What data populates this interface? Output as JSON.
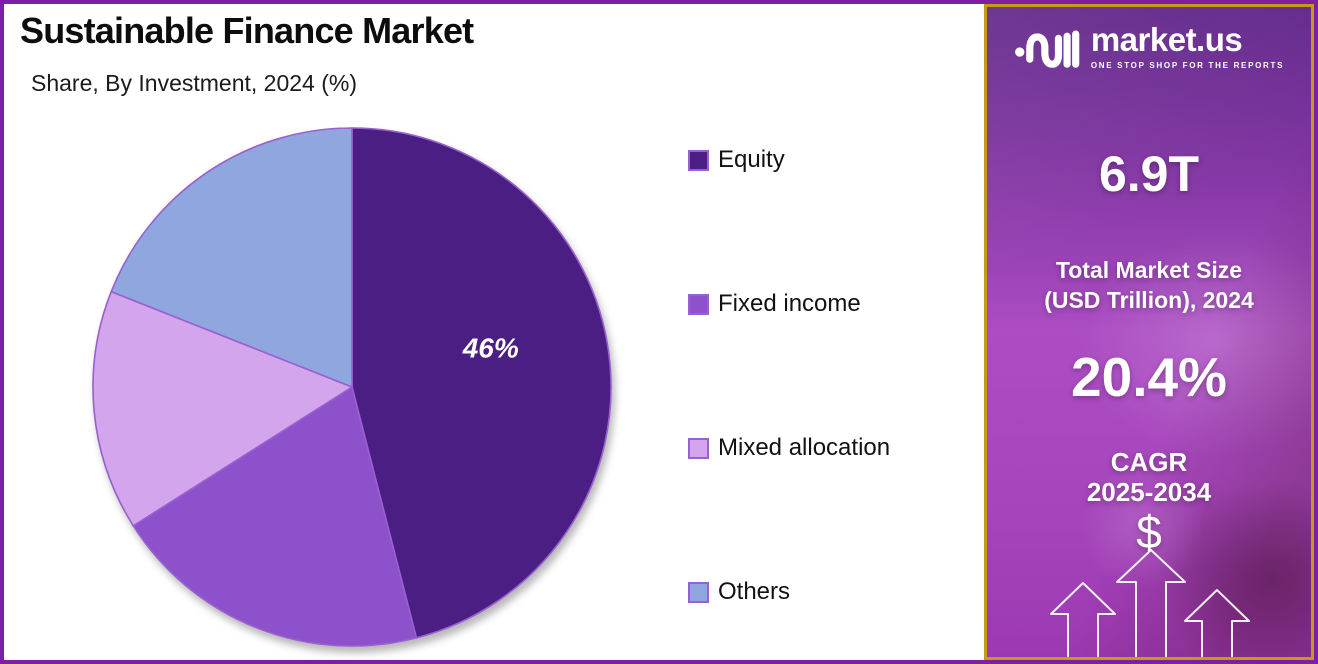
{
  "header": {
    "title": "Sustainable Finance Market",
    "subtitle": "Share, By Investment, 2024 (%)"
  },
  "chart_data": {
    "type": "pie",
    "title": "Sustainable Finance Market",
    "subtitle": "Share, By Investment, 2024 (%)",
    "unit": "%",
    "start_angle": "12-oclock",
    "direction": "clockwise",
    "categories": [
      "Equity",
      "Fixed income",
      "Mixed allocation",
      "Others"
    ],
    "values": [
      46,
      20,
      15,
      19
    ],
    "slices": [
      {
        "name": "Equity",
        "value": 46,
        "label": "46%",
        "color": "#4A1E82"
      },
      {
        "name": "Fixed income",
        "value": 20,
        "label": "",
        "color": "#8E51CC"
      },
      {
        "name": "Mixed allocation",
        "value": 15,
        "label": "",
        "color": "#D2A5EC"
      },
      {
        "name": "Others",
        "value": 19,
        "label": "",
        "color": "#8FA6DF"
      }
    ],
    "slice_stroke_color": "#9A5FD0",
    "legend_position": "right",
    "legend_swatch_border_color": "#9A5FD0"
  },
  "sidebar": {
    "brand": "market.us",
    "tagline": "ONE STOP SHOP FOR THE REPORTS",
    "market_size_value": "6.9T",
    "market_size_label_line1": "Total Market Size",
    "market_size_label_line2": "(USD Trillion), 2024",
    "growth_value": "20.4%",
    "growth_label_line1": "CAGR",
    "growth_label_line2": "2025-2034",
    "currency_symbol": "$",
    "colors": {
      "border": "#C79A16",
      "bg_top": "#5C2185",
      "bg_mid": "#AC4DC3",
      "bg_bottom": "#9C39B2",
      "accent_frame": "#7C1FA2"
    }
  }
}
